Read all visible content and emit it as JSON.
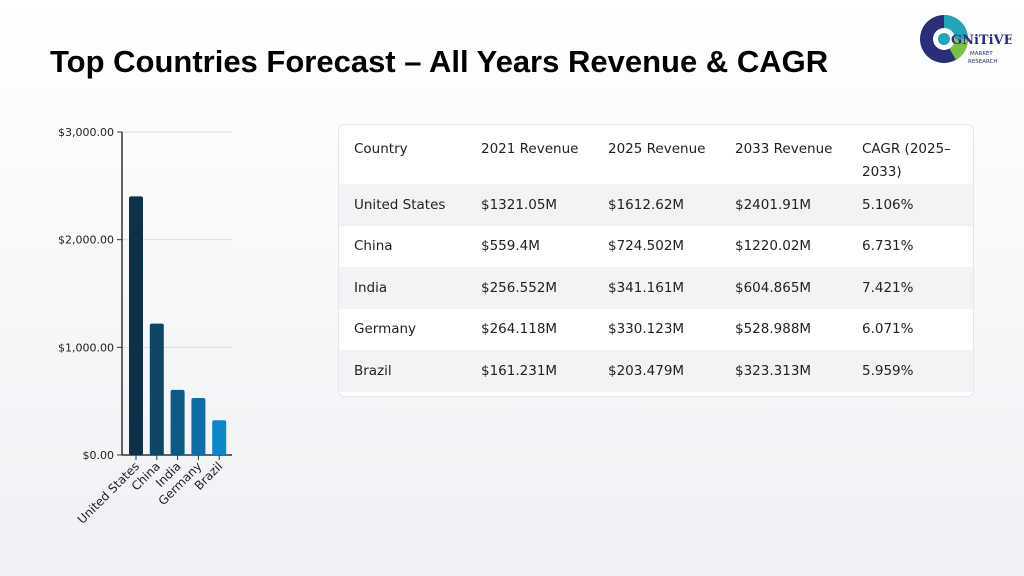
{
  "title": "Top Countries Forecast – All Years Revenue & CAGR",
  "logo": {
    "text": "GNiTiVE",
    "subtext_1": "MARKET",
    "subtext_2": "RESEARCH"
  },
  "chart_data": {
    "type": "bar",
    "categories": [
      "United States",
      "China",
      "India",
      "Germany",
      "Brazil"
    ],
    "values": [
      2401.91,
      1220.02,
      604.865,
      528.988,
      323.313
    ],
    "ylim": [
      0,
      3000
    ],
    "yticks": [
      0,
      1000,
      2000,
      3000
    ],
    "ytick_labels": [
      "$0.00",
      "$1,000.00",
      "$2,000.00",
      "$3,000.00"
    ],
    "bar_colors": [
      "#0d3149",
      "#0f4565",
      "#0e5a85",
      "#0c6ea6",
      "#0d87c8"
    ],
    "grid": true,
    "title": "",
    "xlabel": "",
    "ylabel": ""
  },
  "table": {
    "headers": [
      "Country",
      "2021 Revenue",
      "2025 Revenue",
      "2033 Revenue",
      "CAGR (2025–2033)"
    ],
    "rows": [
      [
        "United States",
        "$1321.05M",
        "$1612.62M",
        "$2401.91M",
        "5.106%"
      ],
      [
        "China",
        "$559.4M",
        "$724.502M",
        "$1220.02M",
        "6.731%"
      ],
      [
        "India",
        "$256.552M",
        "$341.161M",
        "$604.865M",
        "7.421%"
      ],
      [
        "Germany",
        "$264.118M",
        "$330.123M",
        "$528.988M",
        "6.071%"
      ],
      [
        "Brazil",
        "$161.231M",
        "$203.479M",
        "$323.313M",
        "5.959%"
      ]
    ]
  }
}
